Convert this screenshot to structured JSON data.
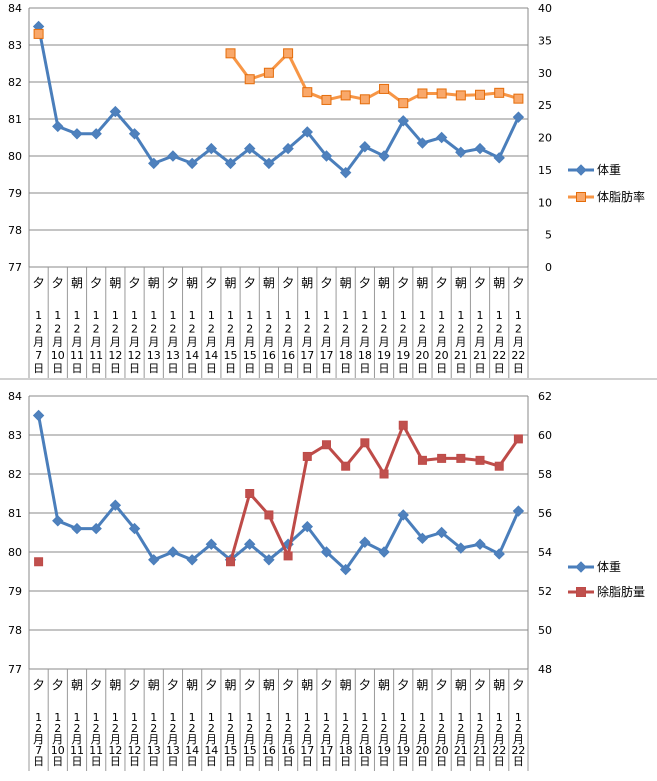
{
  "colors": {
    "weight": "#4A7EBB",
    "weight_marker": "#4F81BD",
    "body_fat": "#F79646",
    "body_fat_marker_fill": "#F9A86A",
    "body_fat_marker_stroke": "#E46C0A",
    "lean_mass": "#BE4B48",
    "lean_mass_marker_fill": "#C0504D",
    "grid": "#888888",
    "divider": "#A0A0A0"
  },
  "x_labels": [
    {
      "period": "夕",
      "month": "12",
      "day": "7"
    },
    {
      "period": "夕",
      "month": "12",
      "day": "10"
    },
    {
      "period": "朝",
      "month": "12",
      "day": "11"
    },
    {
      "period": "夕",
      "month": "12",
      "day": "11"
    },
    {
      "period": "朝",
      "month": "12",
      "day": "12"
    },
    {
      "period": "夕",
      "month": "12",
      "day": "12"
    },
    {
      "period": "朝",
      "month": "12",
      "day": "13"
    },
    {
      "period": "夕",
      "month": "12",
      "day": "13"
    },
    {
      "period": "朝",
      "month": "12",
      "day": "14"
    },
    {
      "period": "夕",
      "month": "12",
      "day": "14"
    },
    {
      "period": "朝",
      "month": "12",
      "day": "15"
    },
    {
      "period": "夕",
      "month": "12",
      "day": "15"
    },
    {
      "period": "朝",
      "month": "12",
      "day": "16"
    },
    {
      "period": "夕",
      "month": "12",
      "day": "16"
    },
    {
      "period": "朝",
      "month": "12",
      "day": "17"
    },
    {
      "period": "夕",
      "month": "12",
      "day": "17"
    },
    {
      "period": "朝",
      "month": "12",
      "day": "18"
    },
    {
      "period": "夕",
      "month": "12",
      "day": "18"
    },
    {
      "period": "朝",
      "month": "12",
      "day": "19"
    },
    {
      "period": "夕",
      "month": "12",
      "day": "19"
    },
    {
      "period": "朝",
      "month": "12",
      "day": "20"
    },
    {
      "period": "夕",
      "month": "12",
      "day": "20"
    },
    {
      "period": "朝",
      "month": "12",
      "day": "21"
    },
    {
      "period": "夕",
      "month": "12",
      "day": "21"
    },
    {
      "period": "朝",
      "month": "12",
      "day": "22"
    },
    {
      "period": "夕",
      "month": "12",
      "day": "22"
    }
  ],
  "chart_data": [
    {
      "type": "line",
      "title": "",
      "y_left": {
        "min": 77,
        "max": 84,
        "step": 1,
        "ticks": [
          "77",
          "78",
          "79",
          "80",
          "81",
          "82",
          "83",
          "84"
        ]
      },
      "y_right": {
        "min": 0,
        "max": 40,
        "step": 5,
        "ticks": [
          "0",
          "5",
          "10",
          "15",
          "20",
          "25",
          "30",
          "35",
          "40"
        ]
      },
      "grid": true,
      "legend_position": "right",
      "series": [
        {
          "name": "体重",
          "axis": "left",
          "marker": "diamond",
          "values": [
            83.5,
            80.8,
            80.6,
            80.6,
            81.2,
            80.6,
            79.8,
            80.0,
            79.8,
            80.2,
            79.8,
            80.2,
            79.8,
            80.2,
            80.65,
            80.0,
            79.55,
            80.25,
            80.0,
            80.95,
            80.35,
            80.5,
            80.1,
            80.2,
            79.95,
            81.05
          ]
        },
        {
          "name": "体脂肪率",
          "axis": "right",
          "marker": "square",
          "values": [
            36.0,
            null,
            null,
            null,
            null,
            null,
            null,
            null,
            null,
            null,
            33.0,
            29.0,
            30.0,
            33.0,
            27.0,
            25.8,
            26.5,
            25.9,
            27.5,
            25.3,
            26.8,
            26.8,
            26.5,
            26.6,
            26.9,
            26.0
          ]
        }
      ]
    },
    {
      "type": "line",
      "title": "",
      "y_left": {
        "min": 77,
        "max": 84,
        "step": 1,
        "ticks": [
          "77",
          "78",
          "79",
          "80",
          "81",
          "82",
          "83",
          "84"
        ]
      },
      "y_right": {
        "min": 48,
        "max": 62,
        "step": 2,
        "ticks": [
          "48",
          "50",
          "52",
          "54",
          "56",
          "58",
          "60",
          "62"
        ]
      },
      "grid": true,
      "legend_position": "right",
      "series": [
        {
          "name": "体重",
          "axis": "left",
          "marker": "diamond",
          "values": [
            83.5,
            80.8,
            80.6,
            80.6,
            81.2,
            80.6,
            79.8,
            80.0,
            79.8,
            80.2,
            79.8,
            80.2,
            79.8,
            80.2,
            80.65,
            80.0,
            79.55,
            80.25,
            80.0,
            80.95,
            80.35,
            80.5,
            80.1,
            80.2,
            79.95,
            81.05
          ]
        },
        {
          "name": "除脂肪量",
          "axis": "right",
          "marker": "square",
          "values": [
            53.5,
            null,
            null,
            null,
            null,
            null,
            null,
            null,
            null,
            null,
            53.5,
            57.0,
            55.9,
            53.8,
            58.9,
            59.5,
            58.4,
            59.6,
            58.0,
            60.5,
            58.7,
            58.8,
            58.8,
            58.7,
            58.4,
            59.8
          ]
        }
      ]
    }
  ]
}
